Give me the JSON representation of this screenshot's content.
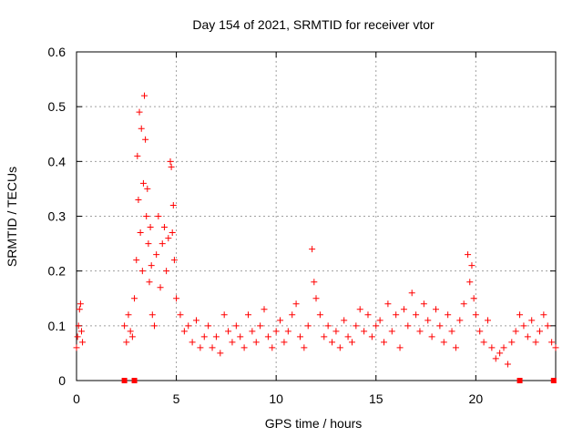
{
  "chart_data": {
    "type": "scatter",
    "title": "Day 154 of 2021, SRMTID for receiver vtor",
    "xlabel": "GPS time / hours",
    "ylabel": "SRMTID / TECUs",
    "xlim": [
      0,
      24
    ],
    "ylim": [
      0,
      0.6
    ],
    "x_ticks": [
      0,
      5,
      10,
      15,
      20
    ],
    "x_tick_labels": [
      "0",
      "5",
      "10",
      "15",
      "20"
    ],
    "y_ticks": [
      0,
      0.1,
      0.2,
      0.3,
      0.4,
      0.5,
      0.6
    ],
    "y_tick_labels": [
      "0",
      "0.1",
      "0.2",
      "0.3",
      "0.4",
      "0.5",
      "0.6"
    ],
    "grid": true,
    "marker": "+",
    "series_color": "#ff0000",
    "series": [
      {
        "name": "SRMTID",
        "x": [
          0.0,
          0.05,
          0.1,
          0.15,
          0.2,
          0.25,
          0.3,
          2.4,
          2.5,
          2.6,
          2.7,
          2.8,
          2.9,
          3.0,
          3.05,
          3.1,
          3.15,
          3.2,
          3.25,
          3.3,
          3.35,
          3.4,
          3.45,
          3.5,
          3.55,
          3.6,
          3.65,
          3.7,
          3.75,
          3.8,
          3.9,
          4.0,
          4.1,
          4.2,
          4.3,
          4.4,
          4.5,
          4.6,
          4.7,
          4.75,
          4.8,
          4.85,
          4.9,
          5.0,
          5.2,
          5.4,
          5.6,
          5.8,
          6.0,
          6.2,
          6.4,
          6.6,
          6.8,
          7.0,
          7.2,
          7.4,
          7.6,
          7.8,
          8.0,
          8.2,
          8.4,
          8.6,
          8.8,
          9.0,
          9.2,
          9.4,
          9.6,
          9.8,
          10.0,
          10.2,
          10.4,
          10.6,
          10.8,
          11.0,
          11.2,
          11.4,
          11.6,
          11.8,
          11.9,
          12.0,
          12.2,
          12.4,
          12.6,
          12.8,
          13.0,
          13.2,
          13.4,
          13.6,
          13.8,
          14.0,
          14.2,
          14.4,
          14.6,
          14.8,
          15.0,
          15.2,
          15.4,
          15.6,
          15.8,
          16.0,
          16.2,
          16.4,
          16.6,
          16.8,
          17.0,
          17.2,
          17.4,
          17.6,
          17.8,
          18.0,
          18.2,
          18.4,
          18.6,
          18.8,
          19.0,
          19.2,
          19.4,
          19.6,
          19.7,
          19.8,
          19.9,
          20.0,
          20.2,
          20.4,
          20.6,
          20.8,
          21.0,
          21.2,
          21.4,
          21.6,
          21.8,
          22.0,
          22.2,
          22.4,
          22.6,
          22.8,
          23.0,
          23.2,
          23.4,
          23.6,
          23.8,
          24.0
        ],
        "y": [
          0.06,
          0.08,
          0.1,
          0.13,
          0.14,
          0.09,
          0.07,
          0.1,
          0.07,
          0.12,
          0.09,
          0.08,
          0.15,
          0.22,
          0.41,
          0.33,
          0.49,
          0.27,
          0.46,
          0.2,
          0.36,
          0.52,
          0.44,
          0.3,
          0.35,
          0.25,
          0.18,
          0.28,
          0.21,
          0.12,
          0.1,
          0.23,
          0.3,
          0.17,
          0.25,
          0.28,
          0.2,
          0.26,
          0.4,
          0.39,
          0.27,
          0.32,
          0.22,
          0.15,
          0.12,
          0.09,
          0.1,
          0.07,
          0.11,
          0.06,
          0.08,
          0.1,
          0.06,
          0.08,
          0.05,
          0.12,
          0.09,
          0.07,
          0.1,
          0.08,
          0.06,
          0.12,
          0.09,
          0.07,
          0.1,
          0.13,
          0.08,
          0.06,
          0.09,
          0.11,
          0.07,
          0.09,
          0.12,
          0.14,
          0.08,
          0.06,
          0.1,
          0.24,
          0.18,
          0.15,
          0.12,
          0.08,
          0.1,
          0.07,
          0.09,
          0.06,
          0.11,
          0.08,
          0.07,
          0.1,
          0.13,
          0.09,
          0.12,
          0.08,
          0.1,
          0.11,
          0.07,
          0.14,
          0.09,
          0.12,
          0.06,
          0.13,
          0.1,
          0.16,
          0.12,
          0.09,
          0.14,
          0.11,
          0.08,
          0.13,
          0.1,
          0.07,
          0.12,
          0.09,
          0.06,
          0.11,
          0.14,
          0.23,
          0.18,
          0.21,
          0.15,
          0.12,
          0.09,
          0.07,
          0.11,
          0.06,
          0.04,
          0.05,
          0.06,
          0.03,
          0.07,
          0.09,
          0.12,
          0.1,
          0.08,
          0.11,
          0.07,
          0.09,
          0.12,
          0.1,
          0.07,
          0.06
        ]
      },
      {
        "name": "missing data markers",
        "x": [
          2.4,
          2.9,
          22.2,
          23.9
        ],
        "y": [
          0,
          0,
          0,
          0
        ]
      }
    ]
  }
}
